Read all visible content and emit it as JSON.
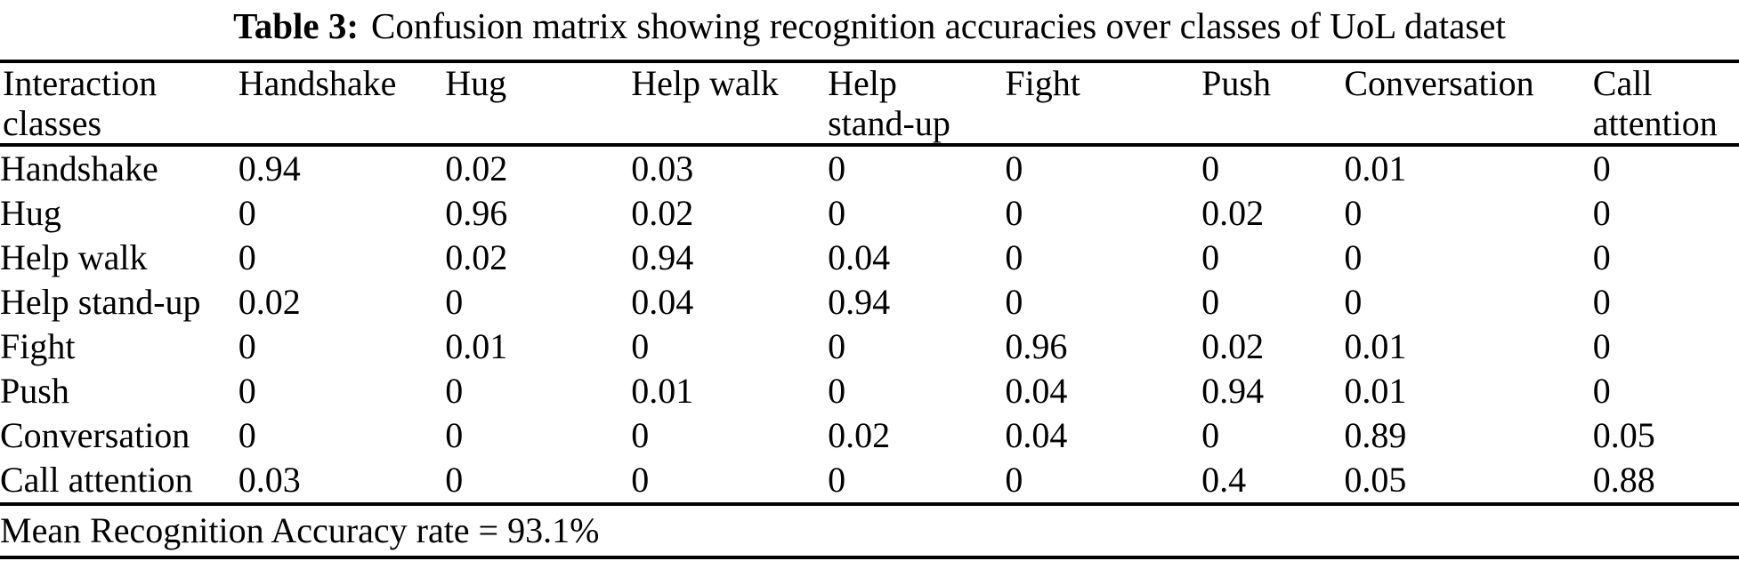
{
  "caption": {
    "label": "Table 3:",
    "text": "Confusion matrix showing recognition accuracies over classes of UoL dataset"
  },
  "table": {
    "columns": [
      [
        "Interaction",
        "classes"
      ],
      [
        "Handshake"
      ],
      [
        "Hug"
      ],
      [
        "Help walk"
      ],
      [
        "Help",
        "stand-up"
      ],
      [
        "Fight"
      ],
      [
        "Push"
      ],
      [
        "Conversation"
      ],
      [
        "Call",
        "attention"
      ]
    ],
    "rows": [
      {
        "label": "Handshake",
        "values": [
          "0.94",
          "0.02",
          "0.03",
          "0",
          "0",
          "0",
          "0.01",
          "0"
        ],
        "bold": 0
      },
      {
        "label": "Hug",
        "values": [
          "0",
          "0.96",
          "0.02",
          "0",
          "0",
          "0.02",
          "0",
          "0"
        ],
        "bold": 1
      },
      {
        "label": "Help walk",
        "values": [
          "0",
          "0.02",
          "0.94",
          "0.04",
          "0",
          "0",
          "0",
          "0"
        ],
        "bold": 2
      },
      {
        "label": "Help stand-up",
        "values": [
          "0.02",
          "0",
          "0.04",
          "0.94",
          "0",
          "0",
          "0",
          "0"
        ],
        "bold": 3
      },
      {
        "label": "Fight",
        "values": [
          "0",
          "0.01",
          "0",
          "0",
          "0.96",
          "0.02",
          "0.01",
          "0"
        ],
        "bold": 4
      },
      {
        "label": "Push",
        "values": [
          "0",
          "0",
          "0.01",
          "0",
          "0.04",
          "0.94",
          "0.01",
          "0"
        ],
        "bold": 5
      },
      {
        "label": "Conversation",
        "values": [
          "0",
          "0",
          "0",
          "0.02",
          "0.04",
          "0",
          "0.89",
          "0.05"
        ],
        "bold": 6
      },
      {
        "label": "Call attention",
        "values": [
          "0.03",
          "0",
          "0",
          "0",
          "0",
          "0.4",
          "0.05",
          "0.88"
        ],
        "bold": 7
      }
    ],
    "footer": "Mean Recognition Accuracy rate = 93.1%",
    "column_widths_pct": [
      13.7,
      11.9,
      10.7,
      11.3,
      10.2,
      11.3,
      8.2,
      14.3,
      8.4
    ],
    "text_color": "#000000",
    "background_color": "#ffffff"
  }
}
